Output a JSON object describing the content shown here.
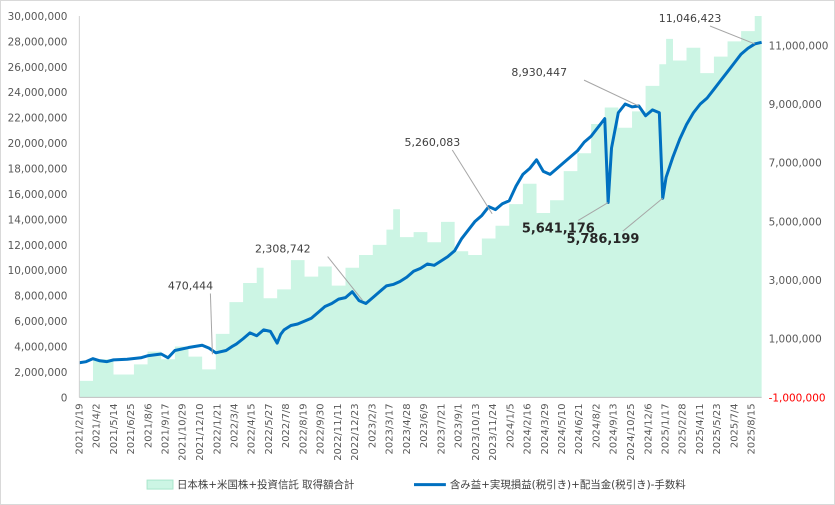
{
  "chart_data": {
    "type": "area+line",
    "series": [
      {
        "name": "日本株+米国株+投資信託 取得額合計",
        "axis": "left",
        "style": "area",
        "color": "#ccf5e4",
        "points": [
          [
            0,
            1300000
          ],
          [
            0.02,
            3000000
          ],
          [
            0.05,
            1800000
          ],
          [
            0.08,
            2600000
          ],
          [
            0.1,
            3600000
          ],
          [
            0.12,
            3000000
          ],
          [
            0.14,
            4000000
          ],
          [
            0.16,
            3200000
          ],
          [
            0.18,
            2200000
          ],
          [
            0.2,
            5000000
          ],
          [
            0.22,
            7500000
          ],
          [
            0.24,
            9000000
          ],
          [
            0.26,
            10200000
          ],
          [
            0.27,
            7800000
          ],
          [
            0.29,
            8500000
          ],
          [
            0.31,
            10800000
          ],
          [
            0.33,
            9500000
          ],
          [
            0.35,
            10300000
          ],
          [
            0.37,
            8800000
          ],
          [
            0.39,
            10200000
          ],
          [
            0.41,
            11200000
          ],
          [
            0.43,
            12000000
          ],
          [
            0.45,
            13200000
          ],
          [
            0.46,
            14800000
          ],
          [
            0.47,
            12600000
          ],
          [
            0.49,
            13000000
          ],
          [
            0.51,
            12200000
          ],
          [
            0.53,
            13800000
          ],
          [
            0.55,
            11500000
          ],
          [
            0.57,
            11200000
          ],
          [
            0.59,
            12500000
          ],
          [
            0.61,
            13500000
          ],
          [
            0.63,
            15200000
          ],
          [
            0.65,
            16800000
          ],
          [
            0.67,
            14500000
          ],
          [
            0.69,
            15500000
          ],
          [
            0.71,
            17800000
          ],
          [
            0.73,
            19200000
          ],
          [
            0.75,
            21500000
          ],
          [
            0.77,
            22800000
          ],
          [
            0.79,
            21200000
          ],
          [
            0.81,
            22500000
          ],
          [
            0.83,
            24500000
          ],
          [
            0.85,
            26200000
          ],
          [
            0.86,
            28200000
          ],
          [
            0.87,
            26500000
          ],
          [
            0.89,
            27500000
          ],
          [
            0.91,
            25500000
          ],
          [
            0.93,
            26800000
          ],
          [
            0.95,
            28000000
          ],
          [
            0.97,
            28800000
          ],
          [
            0.99,
            30000000
          ],
          [
            1.0,
            30000000
          ]
        ]
      },
      {
        "name": "含み益+実現損益(税引き)+配当金(税引き)-手数料",
        "axis": "right",
        "style": "line",
        "color": "#0070c0",
        "points": [
          [
            0,
            180000
          ],
          [
            0.01,
            220000
          ],
          [
            0.02,
            320000
          ],
          [
            0.03,
            250000
          ],
          [
            0.04,
            220000
          ],
          [
            0.05,
            280000
          ],
          [
            0.07,
            300000
          ],
          [
            0.09,
            350000
          ],
          [
            0.1,
            420000
          ],
          [
            0.12,
            480000
          ],
          [
            0.13,
            350000
          ],
          [
            0.14,
            600000
          ],
          [
            0.16,
            700000
          ],
          [
            0.18,
            780000
          ],
          [
            0.19,
            680000
          ],
          [
            0.2,
            520000
          ],
          [
            0.215,
            600000
          ],
          [
            0.225,
            750000
          ],
          [
            0.23,
            820000
          ],
          [
            0.24,
            1000000
          ],
          [
            0.25,
            1200000
          ],
          [
            0.26,
            1100000
          ],
          [
            0.27,
            1300000
          ],
          [
            0.28,
            1250000
          ],
          [
            0.29,
            850000
          ],
          [
            0.295,
            1150000
          ],
          [
            0.3,
            1300000
          ],
          [
            0.31,
            1450000
          ],
          [
            0.32,
            1500000
          ],
          [
            0.33,
            1600000
          ],
          [
            0.34,
            1700000
          ],
          [
            0.35,
            1900000
          ],
          [
            0.36,
            2100000
          ],
          [
            0.37,
            2200000
          ],
          [
            0.38,
            2350000
          ],
          [
            0.39,
            2400000
          ],
          [
            0.4,
            2600000
          ],
          [
            0.41,
            2300000
          ],
          [
            0.42,
            2200000
          ],
          [
            0.43,
            2400000
          ],
          [
            0.44,
            2600000
          ],
          [
            0.45,
            2800000
          ],
          [
            0.46,
            2850000
          ],
          [
            0.47,
            2950000
          ],
          [
            0.48,
            3100000
          ],
          [
            0.49,
            3300000
          ],
          [
            0.5,
            3400000
          ],
          [
            0.51,
            3550000
          ],
          [
            0.52,
            3500000
          ],
          [
            0.53,
            3650000
          ],
          [
            0.54,
            3800000
          ],
          [
            0.55,
            4000000
          ],
          [
            0.56,
            4400000
          ],
          [
            0.57,
            4700000
          ],
          [
            0.58,
            5000000
          ],
          [
            0.59,
            5200000
          ],
          [
            0.6,
            5500000
          ],
          [
            0.61,
            5400000
          ],
          [
            0.62,
            5600000
          ],
          [
            0.63,
            5700000
          ],
          [
            0.64,
            6200000
          ],
          [
            0.65,
            6600000
          ],
          [
            0.66,
            6800000
          ],
          [
            0.67,
            7100000
          ],
          [
            0.68,
            6700000
          ],
          [
            0.69,
            6600000
          ],
          [
            0.7,
            6800000
          ],
          [
            0.71,
            7000000
          ],
          [
            0.72,
            7200000
          ],
          [
            0.73,
            7400000
          ],
          [
            0.74,
            7700000
          ],
          [
            0.75,
            7900000
          ],
          [
            0.76,
            8200000
          ],
          [
            0.77,
            8500000
          ],
          [
            0.775,
            5641176
          ],
          [
            0.78,
            7500000
          ],
          [
            0.79,
            8700000
          ],
          [
            0.8,
            9000000
          ],
          [
            0.81,
            8900000
          ],
          [
            0.82,
            8930447
          ],
          [
            0.83,
            8600000
          ],
          [
            0.84,
            8800000
          ],
          [
            0.85,
            8700000
          ],
          [
            0.855,
            5786199
          ],
          [
            0.86,
            6500000
          ],
          [
            0.87,
            7200000
          ],
          [
            0.88,
            7800000
          ],
          [
            0.89,
            8300000
          ],
          [
            0.9,
            8700000
          ],
          [
            0.91,
            9000000
          ],
          [
            0.92,
            9200000
          ],
          [
            0.93,
            9500000
          ],
          [
            0.94,
            9800000
          ],
          [
            0.95,
            10100000
          ],
          [
            0.96,
            10400000
          ],
          [
            0.97,
            10700000
          ],
          [
            0.98,
            10900000
          ],
          [
            0.99,
            11046423
          ],
          [
            1.0,
            11100000
          ]
        ]
      }
    ],
    "x_tick_labels": [
      "2021/2/19",
      "2021/4/2",
      "2021/5/14",
      "2021/6/25",
      "2021/8/6",
      "2021/9/17",
      "2021/10/29",
      "2021/12/10",
      "2022/1/21",
      "2022/3/4",
      "2022/4/15",
      "2022/5/27",
      "2022/7/8",
      "2022/8/19",
      "2022/9/30",
      "2022/11/11",
      "2022/12/23",
      "2023/2/3",
      "2023/3/17",
      "2023/4/28",
      "2023/6/9",
      "2023/7/21",
      "2023/9/1",
      "2023/10/13",
      "2023/11/24",
      "2024/1/5",
      "2024/2/16",
      "2024/3/29",
      "2024/5/10",
      "2024/6/21",
      "2024/8/2",
      "2024/9/13",
      "2024/10/25",
      "2024/12/6",
      "2025/1/17",
      "2025/2/28",
      "2025/4/11",
      "2025/5/23",
      "2025/7/4",
      "2025/8/15"
    ],
    "y_left": {
      "min": 0,
      "max": 30000000,
      "step": 2000000,
      "tick_labels": [
        "0",
        "2,000,000",
        "4,000,000",
        "6,000,000",
        "8,000,000",
        "10,000,000",
        "12,000,000",
        "14,000,000",
        "16,000,000",
        "18,000,000",
        "20,000,000",
        "22,000,000",
        "24,000,000",
        "26,000,000",
        "28,000,000",
        "30,000,000"
      ]
    },
    "y_right": {
      "min": -1000000,
      "max": 12000000,
      "ticks": [
        -1000000,
        1000000,
        3000000,
        5000000,
        7000000,
        9000000,
        11000000
      ],
      "tick_labels": [
        "-1,000,000",
        "1,000,000",
        "3,000,000",
        "5,000,000",
        "7,000,000",
        "9,000,000",
        "11,000,000"
      ]
    },
    "annotations": [
      {
        "label": "470,444",
        "x": 0.195,
        "value": 470444,
        "bold": false
      },
      {
        "label": "2,308,742",
        "x": 0.415,
        "value": 2308742,
        "bold": false
      },
      {
        "label": "5,260,083",
        "x": 0.605,
        "value": 5260083,
        "bold": false
      },
      {
        "label": "8,930,447",
        "x": 0.82,
        "value": 8930447,
        "bold": false
      },
      {
        "label": "5,641,176",
        "x": 0.775,
        "value": 5641176,
        "bold": true
      },
      {
        "label": "5,786,199",
        "x": 0.855,
        "value": 5786199,
        "bold": true
      },
      {
        "label": "11,046,423",
        "x": 0.99,
        "value": 11046423,
        "bold": false
      }
    ],
    "legend": {
      "placement": "bottom",
      "items": [
        {
          "label": "日本株+米国株+投資信託 取得額合計",
          "style": "area",
          "color": "#ccf5e4"
        },
        {
          "label": "含み益+実現損益(税引き)+配当金(税引き)-手数料",
          "style": "line",
          "color": "#0070c0"
        }
      ]
    },
    "grid": false
  }
}
